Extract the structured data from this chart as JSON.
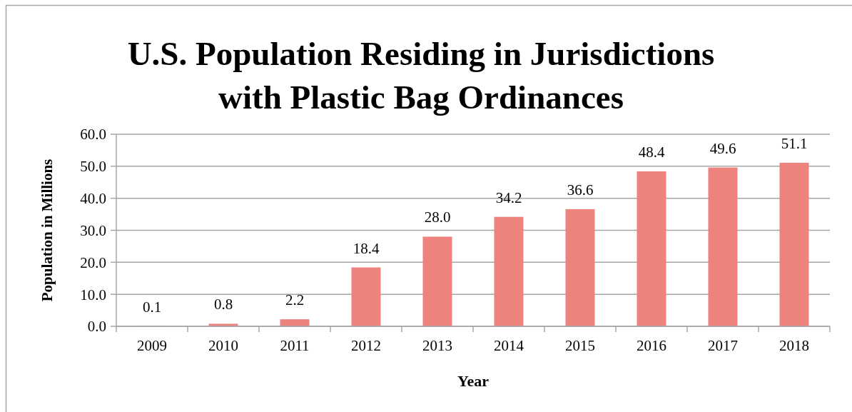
{
  "chart_data": {
    "type": "bar",
    "title": "U.S. Population Residing in Jurisdictions with Plastic Bag Ordinances",
    "xlabel": "Year",
    "ylabel": "Population in Millions",
    "categories": [
      "2009",
      "2010",
      "2011",
      "2012",
      "2013",
      "2014",
      "2015",
      "2016",
      "2017",
      "2018"
    ],
    "values": [
      0.1,
      0.8,
      2.2,
      18.4,
      28.0,
      34.2,
      36.6,
      48.4,
      49.6,
      51.1
    ],
    "color": "#ee837d",
    "value_labels": [
      "0.1",
      "0.8",
      "2.2",
      "18.4",
      "28.0",
      "34.2",
      "36.6",
      "48.4",
      "49.6",
      "51.1"
    ],
    "ylim": [
      0,
      60
    ],
    "yticks": [
      {
        "value": 0,
        "label": "0.0"
      },
      {
        "value": 10,
        "label": "10.0"
      },
      {
        "value": 20,
        "label": "20.0"
      },
      {
        "value": 30,
        "label": "30.0"
      },
      {
        "value": 40,
        "label": "40.0"
      },
      {
        "value": 50,
        "label": "50.0"
      },
      {
        "value": 60,
        "label": "60.0"
      }
    ],
    "grid": "y"
  }
}
